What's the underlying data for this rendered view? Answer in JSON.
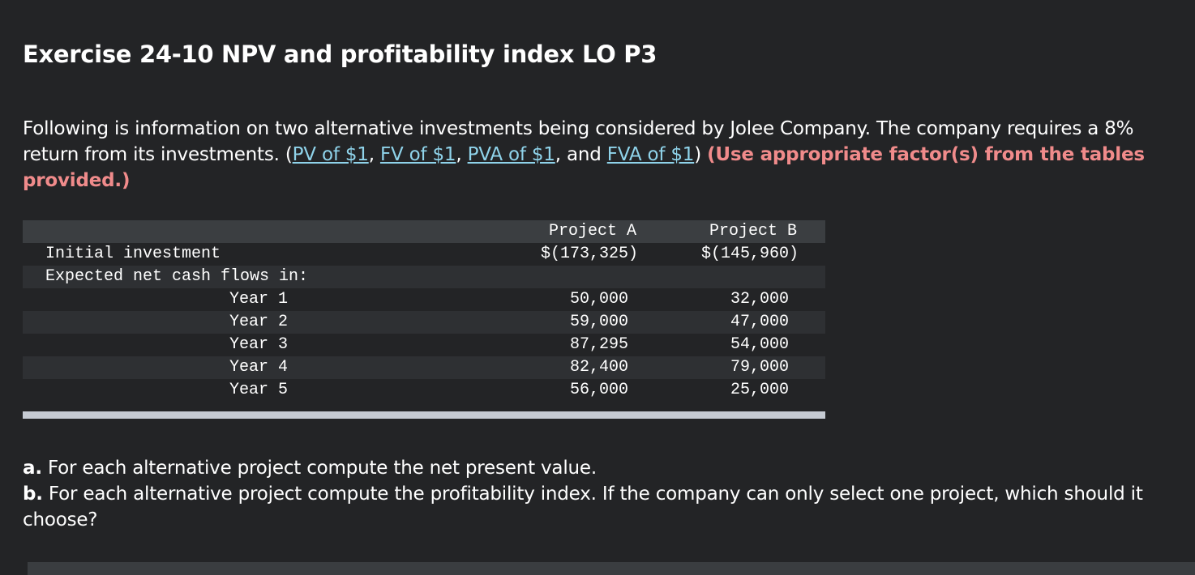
{
  "title": "Exercise 24-10 NPV and profitability index LO P3",
  "intro": {
    "text1": "Following is information on two alternative investments being considered by Jolee Company. The company requires a 8% return from its investments. (",
    "links": [
      "PV of $1",
      "FV of $1",
      "PVA of $1",
      "FVA of $1"
    ],
    "sep1": ", ",
    "sep2": ", ",
    "sep3": ", and ",
    "close": ") ",
    "instruction": "(Use appropriate factor(s) from the tables provided.)"
  },
  "table": {
    "headers": [
      "Project A",
      "Project B"
    ],
    "initial_label": "Initial investment",
    "initial_a": "$(173,325)",
    "initial_b": "$(145,960)",
    "cash_flows_label": "Expected net cash flows in:",
    "years": [
      {
        "label": "Year 1",
        "a": "50,000",
        "b": "32,000"
      },
      {
        "label": "Year 2",
        "a": "59,000",
        "b": "47,000"
      },
      {
        "label": "Year 3",
        "a": "87,295",
        "b": "54,000"
      },
      {
        "label": "Year 4",
        "a": "82,400",
        "b": "79,000"
      },
      {
        "label": "Year 5",
        "a": "56,000",
        "b": "25,000"
      }
    ]
  },
  "questions": {
    "a_prefix": "a.",
    "a_text": " For each alternative project compute the net present value.",
    "b_prefix": "b.",
    "b_text": " For each alternative project compute the profitability index. If the company can only select one project, which should it choose?"
  }
}
